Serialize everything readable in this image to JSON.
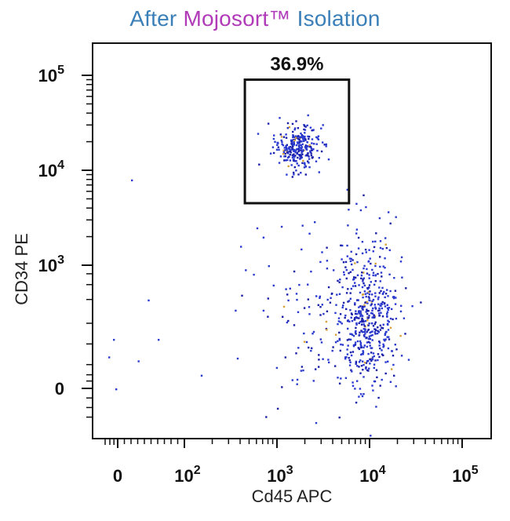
{
  "title": {
    "part1": "After ",
    "part2": "Mojosort™",
    "part3": " Isolation"
  },
  "colors": {
    "title_blue": "#3a7fb8",
    "title_purple": "#b03ab8",
    "events": "#2b3bd0",
    "events_dense": "#1a1fa8",
    "events_hot": "#d7a23a",
    "gate": "#111111",
    "axis": "#111111"
  },
  "chart_data": {
    "type": "scatter",
    "subtype": "flow-cytometry-dot-plot",
    "xlabel": "Cd45 APC",
    "ylabel": "CD34 PE",
    "x_scale": "biexponential",
    "y_scale": "biexponential",
    "x_ticks": [
      {
        "value": 0,
        "label": "0"
      },
      {
        "value": 100,
        "label": "10",
        "exp": "2"
      },
      {
        "value": 1000,
        "label": "10",
        "exp": "3"
      },
      {
        "value": 10000,
        "label": "10",
        "exp": "4"
      },
      {
        "value": 100000,
        "label": "10",
        "exp": "5"
      }
    ],
    "y_ticks": [
      {
        "value": 0,
        "label": "0"
      },
      {
        "value": 1000,
        "label": "10",
        "exp": "3"
      },
      {
        "value": 10000,
        "label": "10",
        "exp": "4"
      },
      {
        "value": 100000,
        "label": "10",
        "exp": "5"
      }
    ],
    "gate": {
      "shape": "rectangle",
      "x_range": [
        450,
        6000
      ],
      "y_range": [
        4500,
        90000
      ],
      "percent_label": "36.9%"
    },
    "populations": [
      {
        "name": "",
        "center": [
          1600,
          18000
        ],
        "spread_log": [
          0.12,
          0.12
        ],
        "approx_events": 260
      },
      {
        "name": "",
        "center": [
          9000,
          250
        ],
        "spread_log": [
          0.18,
          0.5
        ],
        "approx_events": 520
      },
      {
        "name": "",
        "center": [
          2500,
          200
        ],
        "spread_log": [
          0.25,
          0.5
        ],
        "approx_events": 90
      }
    ],
    "grid": false,
    "legend": "none"
  }
}
